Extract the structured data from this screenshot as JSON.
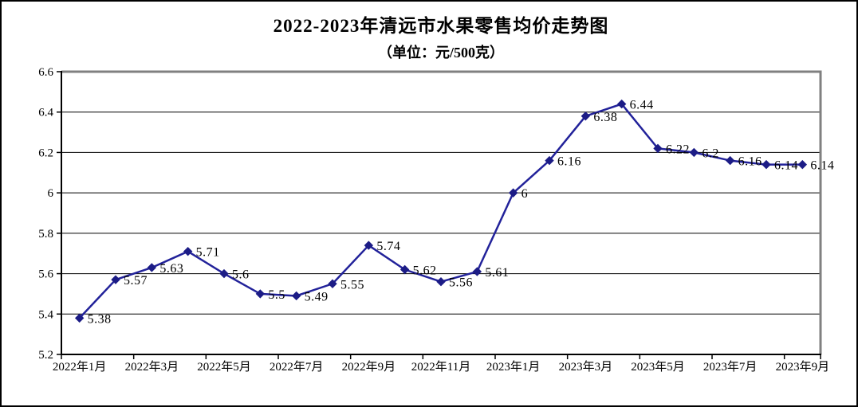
{
  "title": "2022-2023年清远市水果零售均价走势图",
  "subtitle": "（单位：元/500克）",
  "chart_data": {
    "type": "line",
    "title": "2022-2023年清远市水果零售均价走势图",
    "subtitle": "（单位：元/500克）",
    "unit": "元/500克",
    "x_tick_labels": [
      "2022年1月",
      "2022年3月",
      "2022年5月",
      "2022年7月",
      "2022年9月",
      "2022年11月",
      "2023年1月",
      "2023年3月",
      "2023年5月",
      "2023年7月",
      "2023年9月"
    ],
    "y_tick_labels": [
      "5.2",
      "5.4",
      "5.6",
      "5.8",
      "6",
      "6.2",
      "6.4",
      "6.6"
    ],
    "series": [
      {
        "name": "水果零售均价",
        "values": [
          5.38,
          5.57,
          5.63,
          5.71,
          5.6,
          5.5,
          5.49,
          5.55,
          5.74,
          5.62,
          5.56,
          5.61,
          6,
          6.16,
          6.38,
          6.44,
          6.22,
          6.2,
          6.16,
          6.14,
          6.14
        ],
        "data_labels": [
          "5.38",
          "5.57",
          "5.63",
          "5.71",
          "5.6",
          "5.5",
          "5.49",
          "5.55",
          "5.74",
          "5.62",
          "5.56",
          "5.61",
          "6",
          "6.16",
          "6.38",
          "6.44",
          "6.22",
          "6.2",
          "6.16",
          "6.14",
          "6.14"
        ]
      }
    ],
    "ylim": [
      5.2,
      6.6
    ],
    "y_major_unit": 0.2,
    "x_major_unit_categories": 2,
    "grid": true,
    "legend": "none",
    "marker": "diamond",
    "colors": {
      "line": "#22229A",
      "marker": "#1C1C86",
      "gridline": "#000000",
      "axis": "#000000",
      "plot_border": "#808080",
      "label_text": "#000000",
      "background": "#ffffff"
    }
  }
}
